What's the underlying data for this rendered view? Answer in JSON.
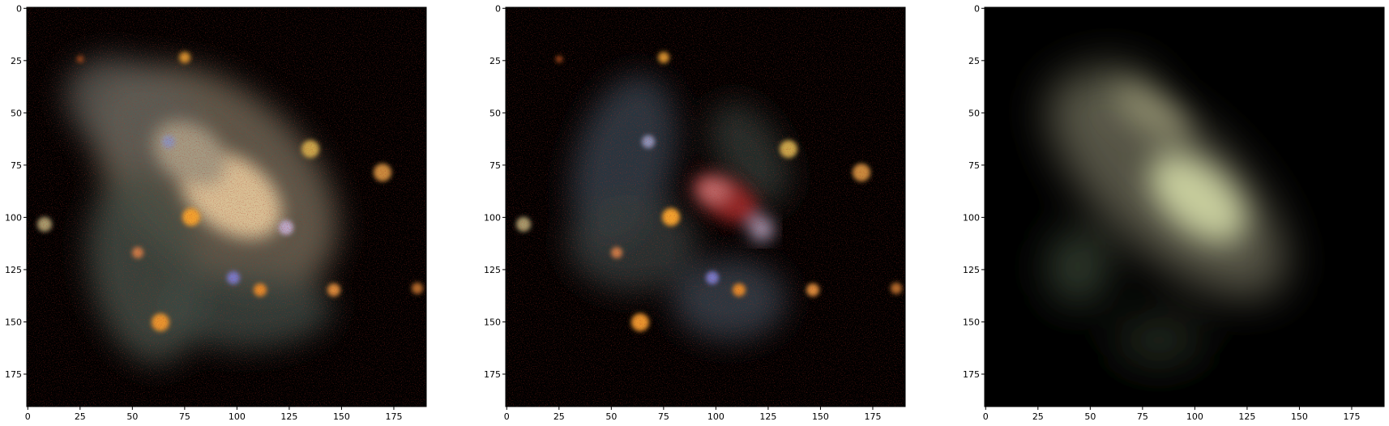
{
  "figure": {
    "panels": [
      {
        "id": "original",
        "xticks": [
          "0",
          "25",
          "50",
          "75",
          "100",
          "125",
          "150",
          "175"
        ],
        "yticks": [
          "0",
          "25",
          "50",
          "75",
          "100",
          "125",
          "150",
          "175"
        ]
      },
      {
        "id": "residual",
        "xticks": [
          "0",
          "25",
          "50",
          "75",
          "100",
          "125",
          "150",
          "175"
        ],
        "yticks": [
          "0",
          "25",
          "50",
          "75",
          "100",
          "125",
          "150",
          "175"
        ]
      },
      {
        "id": "model",
        "xticks": [
          "0",
          "25",
          "50",
          "75",
          "100",
          "125",
          "150",
          "175"
        ],
        "yticks": [
          "0",
          "25",
          "50",
          "75",
          "100",
          "125",
          "150",
          "175"
        ]
      }
    ],
    "tick_values": [
      0,
      25,
      50,
      75,
      100,
      125,
      150,
      175
    ],
    "image_extent": [
      0,
      191
    ],
    "colors": {
      "background": "#000000",
      "axis": "#000000",
      "text": "#000000"
    }
  }
}
